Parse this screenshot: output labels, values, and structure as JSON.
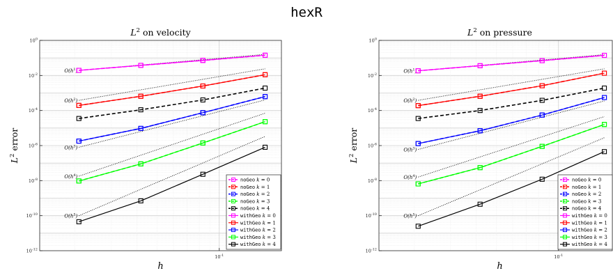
{
  "figure": {
    "title": "hexR"
  },
  "chart_data": [
    {
      "type": "line",
      "title": "L² on velocity",
      "title_main": "L",
      "title_sup": "2",
      "title_rest": " on velocity",
      "xlabel": "h",
      "ylabel_main": "L",
      "ylabel_sup": "2",
      "ylabel_rest": " error",
      "xscale": "log",
      "yscale": "log",
      "xlim": [
        0.0135,
        0.2
      ],
      "ylim": [
        1e-12,
        1
      ],
      "grid": true,
      "x_tick_labels": [
        {
          "value": 0.1,
          "base": "10",
          "exp": "-1"
        }
      ],
      "y_tick_labels": [
        {
          "value": 1,
          "base": "10",
          "exp": "0"
        },
        {
          "value": 0.01,
          "base": "10",
          "exp": "-2"
        },
        {
          "value": 0.0001,
          "base": "10",
          "exp": "-4"
        },
        {
          "value": 1e-06,
          "base": "10",
          "exp": "-6"
        },
        {
          "value": 1e-08,
          "base": "10",
          "exp": "-8"
        },
        {
          "value": 1e-10,
          "base": "10",
          "exp": "-10"
        },
        {
          "value": 1e-12,
          "base": "10",
          "exp": "-12"
        }
      ],
      "x": [
        0.0209,
        0.0417,
        0.0833,
        0.1667
      ],
      "series": [
        {
          "name": "noGeo k = 0",
          "geo": "noGeo",
          "k": "0",
          "color": "#ff00ff",
          "style": "dashed",
          "values": [
            0.0195,
            0.0375,
            0.072,
            0.142
          ]
        },
        {
          "name": "noGeo k = 1",
          "geo": "noGeo",
          "k": "1",
          "color": "#ff0000",
          "style": "dashed",
          "values": [
            0.000195,
            0.00065,
            0.0025,
            0.011
          ]
        },
        {
          "name": "noGeo k = 2",
          "geo": "noGeo",
          "k": "2",
          "color": "#0000ff",
          "style": "dashed",
          "values": [
            1.8e-06,
            9.5e-06,
            7.5e-05,
            0.00062
          ]
        },
        {
          "name": "noGeo k = 3",
          "geo": "noGeo",
          "k": "3",
          "color": "#00ff00",
          "style": "dashed",
          "values": [
            9.5e-09,
            9e-08,
            1.4e-06,
            2.3e-05
          ]
        },
        {
          "name": "noGeo k = 4",
          "geo": "noGeo",
          "k": "4",
          "color": "#000000",
          "style": "dashed",
          "values": [
            3.5e-05,
            0.00011,
            0.0004,
            0.0019
          ]
        },
        {
          "name": "withGeo k = 0",
          "geo": "withGeo",
          "k": "0",
          "color": "#ff00ff",
          "style": "solid",
          "values": [
            0.0195,
            0.0375,
            0.072,
            0.142
          ]
        },
        {
          "name": "withGeo k = 1",
          "geo": "withGeo",
          "k": "1",
          "color": "#ff0000",
          "style": "solid",
          "values": [
            0.000195,
            0.00065,
            0.0025,
            0.011
          ]
        },
        {
          "name": "withGeo k = 2",
          "geo": "withGeo",
          "k": "2",
          "color": "#0000ff",
          "style": "solid",
          "values": [
            1.8e-06,
            9.5e-06,
            7.5e-05,
            0.00062
          ]
        },
        {
          "name": "withGeo k = 3",
          "geo": "withGeo",
          "k": "3",
          "color": "#00ff00",
          "style": "solid",
          "values": [
            9.5e-09,
            9e-08,
            1.4e-06,
            2.3e-05
          ]
        },
        {
          "name": "withGeo k = 4",
          "geo": "withGeo",
          "k": "4",
          "color": "#000000",
          "style": "solid",
          "values": [
            4.5e-11,
            7e-10,
            2.3e-08,
            8e-07
          ]
        }
      ],
      "reference_lines": [
        {
          "label_base": "O(h",
          "label_exp": "1",
          "label_end": ")",
          "x0": 0.0209,
          "x1": 0.1667,
          "y0": 0.0195,
          "y1": 0.16
        },
        {
          "label_base": "O(h",
          "label_exp": "2",
          "label_end": ")",
          "x0": 0.0209,
          "x1": 0.1667,
          "y0": 0.00038,
          "y1": 0.024
        },
        {
          "label_base": "O(h",
          "label_exp": "3",
          "label_end": ")",
          "x0": 0.0209,
          "x1": 0.1667,
          "y0": 8e-07,
          "y1": 0.0004
        },
        {
          "label_base": "O(h",
          "label_exp": "4",
          "label_end": ")",
          "x0": 0.0209,
          "x1": 0.1667,
          "y0": 1.8e-08,
          "y1": 7e-05
        },
        {
          "label_base": "O(h",
          "label_exp": "5",
          "label_end": ")",
          "x0": 0.0209,
          "x1": 0.1667,
          "y0": 1e-10,
          "y1": 3.3e-06
        }
      ],
      "legend": "bottom-right"
    },
    {
      "type": "line",
      "title": "L² on pressure",
      "title_main": "L",
      "title_sup": "2",
      "title_rest": " on pressure",
      "xlabel": "h",
      "ylabel_main": "L",
      "ylabel_sup": "2",
      "ylabel_rest": " error",
      "xscale": "log",
      "yscale": "log",
      "xlim": [
        0.0135,
        0.2
      ],
      "ylim": [
        1e-12,
        1
      ],
      "grid": true,
      "x_tick_labels": [
        {
          "value": 0.1,
          "base": "10",
          "exp": "-1"
        }
      ],
      "y_tick_labels": [
        {
          "value": 1,
          "base": "10",
          "exp": "0"
        },
        {
          "value": 0.01,
          "base": "10",
          "exp": "-2"
        },
        {
          "value": 0.0001,
          "base": "10",
          "exp": "-4"
        },
        {
          "value": 1e-06,
          "base": "10",
          "exp": "-6"
        },
        {
          "value": 1e-08,
          "base": "10",
          "exp": "-8"
        },
        {
          "value": 1e-10,
          "base": "10",
          "exp": "-10"
        },
        {
          "value": 1e-12,
          "base": "10",
          "exp": "-12"
        }
      ],
      "x": [
        0.0209,
        0.0417,
        0.0833,
        0.1667
      ],
      "series": [
        {
          "name": "noGeo k = 0",
          "geo": "noGeo",
          "k": "0",
          "color": "#ff00ff",
          "style": "dashed",
          "values": [
            0.0185,
            0.036,
            0.07,
            0.14
          ]
        },
        {
          "name": "noGeo k = 1",
          "geo": "noGeo",
          "k": "1",
          "color": "#ff0000",
          "style": "dashed",
          "values": [
            0.00019,
            0.00065,
            0.0026,
            0.0135
          ]
        },
        {
          "name": "noGeo k = 2",
          "geo": "noGeo",
          "k": "2",
          "color": "#0000ff",
          "style": "dashed",
          "values": [
            1.3e-06,
            7e-06,
            5.5e-05,
            0.00055
          ]
        },
        {
          "name": "noGeo k = 3",
          "geo": "noGeo",
          "k": "3",
          "color": "#00ff00",
          "style": "dashed",
          "values": [
            6.5e-09,
            5.5e-08,
            9e-07,
            1.6e-05
          ]
        },
        {
          "name": "noGeo k = 4",
          "geo": "noGeo",
          "k": "4",
          "color": "#000000",
          "style": "dashed",
          "values": [
            3.5e-05,
            0.0001,
            0.00038,
            0.0019
          ]
        },
        {
          "name": "withGeo k = 0",
          "geo": "withGeo",
          "k": "0",
          "color": "#ff00ff",
          "style": "solid",
          "values": [
            0.0185,
            0.036,
            0.07,
            0.14
          ]
        },
        {
          "name": "withGeo k = 1",
          "geo": "withGeo",
          "k": "1",
          "color": "#ff0000",
          "style": "solid",
          "values": [
            0.00019,
            0.00065,
            0.0026,
            0.0135
          ]
        },
        {
          "name": "withGeo k = 2",
          "geo": "withGeo",
          "k": "2",
          "color": "#0000ff",
          "style": "solid",
          "values": [
            1.3e-06,
            7e-06,
            5.5e-05,
            0.00055
          ]
        },
        {
          "name": "withGeo k = 3",
          "geo": "withGeo",
          "k": "3",
          "color": "#00ff00",
          "style": "solid",
          "values": [
            6.5e-09,
            5.5e-08,
            9e-07,
            1.6e-05
          ]
        },
        {
          "name": "withGeo k = 4",
          "geo": "withGeo",
          "k": "4",
          "color": "#000000",
          "style": "solid",
          "values": [
            2.5e-11,
            4.5e-10,
            1.2e-08,
            4.5e-07
          ]
        }
      ],
      "reference_lines": [
        {
          "label_base": "O(h",
          "label_exp": "1",
          "label_end": ")",
          "x0": 0.0209,
          "x1": 0.1667,
          "y0": 0.0185,
          "y1": 0.155
        },
        {
          "label_base": "O(h",
          "label_exp": "2",
          "label_end": ")",
          "x0": 0.0209,
          "x1": 0.1667,
          "y0": 0.00038,
          "y1": 0.024
        },
        {
          "label_base": "O(h",
          "label_exp": "3",
          "label_end": ")",
          "x0": 0.0209,
          "x1": 0.1667,
          "y0": 6e-07,
          "y1": 0.00035
        },
        {
          "label_base": "O(h",
          "label_exp": "4",
          "label_end": ")",
          "x0": 0.0209,
          "x1": 0.1667,
          "y0": 1.6e-08,
          "y1": 4.5e-05
        },
        {
          "label_base": "O(h",
          "label_exp": "5",
          "label_end": ")",
          "x0": 0.0209,
          "x1": 0.1667,
          "y0": 1e-10,
          "y1": 2.8e-06
        }
      ],
      "legend": "bottom-right"
    }
  ]
}
